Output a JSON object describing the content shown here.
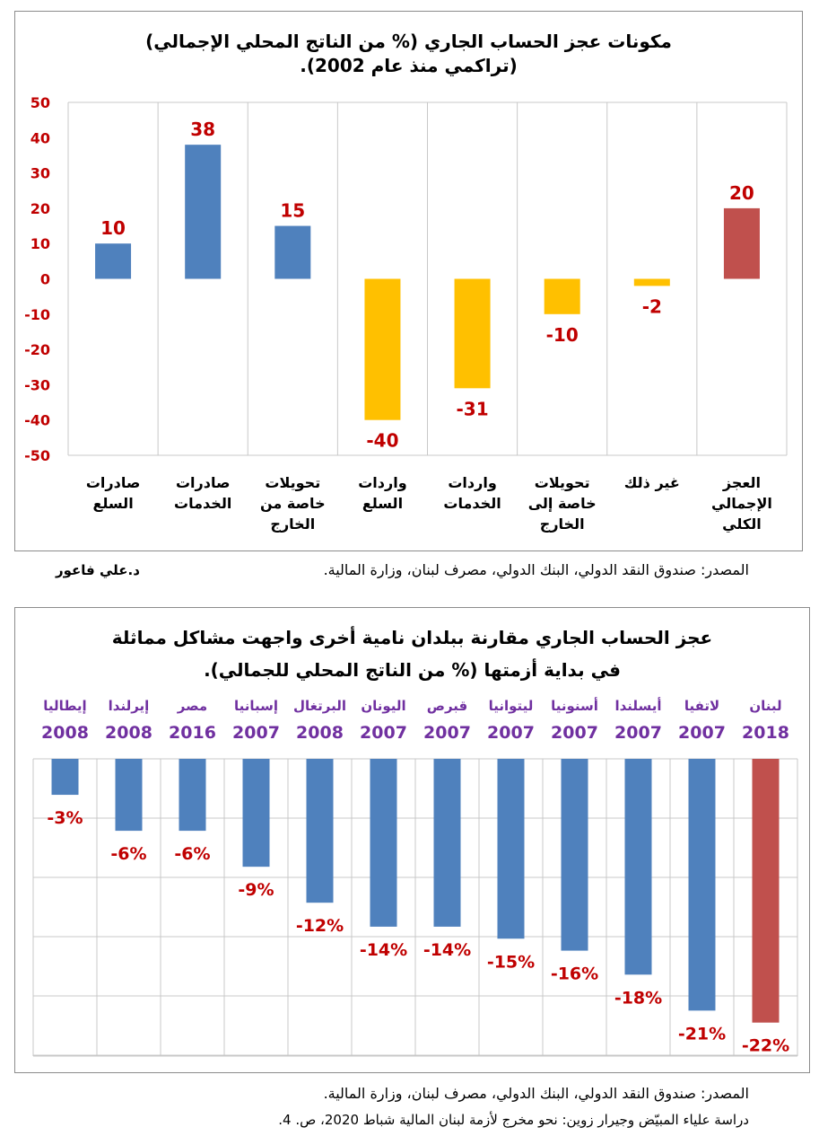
{
  "chart_data": [
    {
      "type": "bar",
      "title_line1": "مكونات عجز الحساب الجاري (% من الناتج المحلي الإجمالي)",
      "title_line2": "(تراكمي منذ عام 2002).",
      "categories": [
        [
          "صادرات",
          "السلع"
        ],
        [
          "صادرات",
          "الخدمات"
        ],
        [
          "تحويلات",
          "خاصة من",
          "الخارج"
        ],
        [
          "واردات",
          "السلع"
        ],
        [
          "واردات",
          "الخدمات"
        ],
        [
          "تحويلات",
          "خاصة إلى",
          "الخارج"
        ],
        [
          "غير ذلك"
        ],
        [
          "العجز",
          "الإجمالي",
          "الكلي"
        ]
      ],
      "values": [
        10,
        38,
        15,
        -40,
        -31,
        -10,
        -2,
        20
      ],
      "data_labels": [
        "10",
        "38",
        "15",
        "-40",
        "-31",
        "-10",
        "-2",
        "20"
      ],
      "bar_colors": [
        "#4f81bd",
        "#4f81bd",
        "#4f81bd",
        "#ffc000",
        "#ffc000",
        "#ffc000",
        "#ffc000",
        "#c0504d"
      ],
      "ylim": [
        -50,
        50
      ],
      "yticks": [
        "50",
        "40",
        "30",
        "20",
        "10",
        "0",
        "-10",
        "-20",
        "-30",
        "-40",
        "-50"
      ],
      "ytick_values": [
        50,
        40,
        30,
        20,
        10,
        0,
        -10,
        -20,
        -30,
        -40,
        -50
      ],
      "grid": "vertical",
      "label_color": "#c00000"
    },
    {
      "type": "bar",
      "title_line1": "عجز الحساب الجاري مقارنة ببلدان نامية أخرى واجهت مشاكل مماثلة",
      "title_line2": "في بداية أزمتها (% من الناتج المحلي للجمالي).",
      "categories": [
        "إيطاليا",
        "إيرلندا",
        "مصر",
        "إسبانيا",
        "البرتغال",
        "اليونان",
        "قبرص",
        "ليتوانيا",
        "أسنونيا",
        "أيسلندا",
        "لاتفيا",
        "لبنان"
      ],
      "years": [
        "2008",
        "2008",
        "2016",
        "2007",
        "2008",
        "2007",
        "2007",
        "2007",
        "2007",
        "2007",
        "2007",
        "2018"
      ],
      "values": [
        -3,
        -6,
        -6,
        -9,
        -12,
        -14,
        -14,
        -15,
        -16,
        -18,
        -21,
        -22
      ],
      "data_labels": [
        "-3%",
        "-6%",
        "-6%",
        "-9%",
        "-12%",
        "-14%",
        "-14%",
        "-15%",
        "-16%",
        "-18%",
        "-21%",
        "-22%"
      ],
      "bar_colors": [
        "#4f81bd",
        "#4f81bd",
        "#4f81bd",
        "#4f81bd",
        "#4f81bd",
        "#4f81bd",
        "#4f81bd",
        "#4f81bd",
        "#4f81bd",
        "#4f81bd",
        "#4f81bd",
        "#c0504d"
      ],
      "ylim": [
        -22,
        0
      ],
      "grid": "both",
      "label_color": "#c00000",
      "category_color": "#7030a0"
    }
  ],
  "source1": "المصدر: صندوق النقد الدولي، البنك الدولي، مصرف لبنان، وزارة المالية.",
  "author": "د.علي فاعور",
  "source2_line1": "المصدر: صندوق النقد الدولي، البنك الدولي، مصرف لبنان، وزارة المالية.",
  "source2_line2": "دراسة علياء المبيّض وجيرار زوين: نحو مخرج لأزمة لبنان المالية شباط 2020، ص. 4."
}
